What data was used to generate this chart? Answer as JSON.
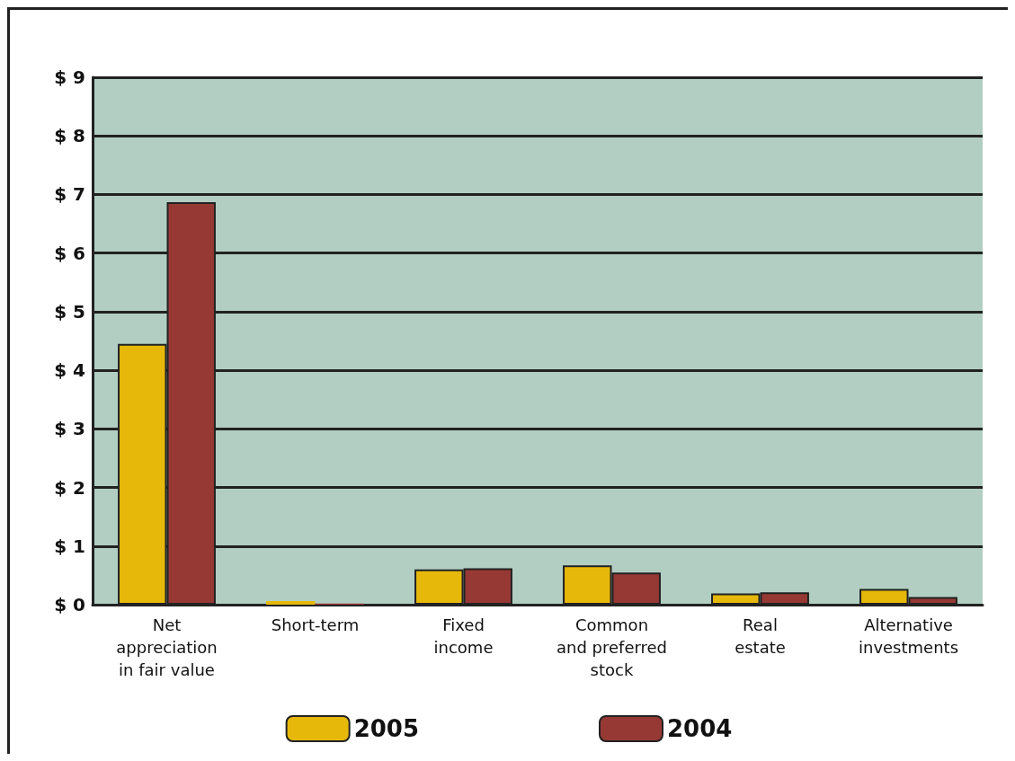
{
  "chart_data": {
    "type": "bar",
    "categories": [
      "Net\nappreciation\nin fair value",
      "Short-term",
      "Fixed\nincome",
      "Common\nand preferred\nstock",
      "Real\nestate",
      "Alternative\ninvestments"
    ],
    "series": [
      {
        "name": "2005",
        "color": "#e6b80a",
        "values": [
          4.45,
          0.06,
          0.6,
          0.67,
          0.19,
          0.27
        ]
      },
      {
        "name": "2004",
        "color": "#963934",
        "values": [
          6.87,
          0.02,
          0.62,
          0.55,
          0.21,
          0.13
        ]
      }
    ],
    "ylim": [
      0,
      9
    ],
    "yticks": [
      {
        "value": 0,
        "label": "$ 0"
      },
      {
        "value": 1,
        "label": "$ 1"
      },
      {
        "value": 2,
        "label": "$ 2"
      },
      {
        "value": 3,
        "label": "$ 3"
      },
      {
        "value": 4,
        "label": "$ 4"
      },
      {
        "value": 5,
        "label": "$ 5"
      },
      {
        "value": 6,
        "label": "$ 6"
      },
      {
        "value": 7,
        "label": "$ 7"
      },
      {
        "value": 8,
        "label": "$ 8"
      },
      {
        "value": 9,
        "label": "$ 9"
      }
    ],
    "grid": "y",
    "legend": "bottom"
  }
}
